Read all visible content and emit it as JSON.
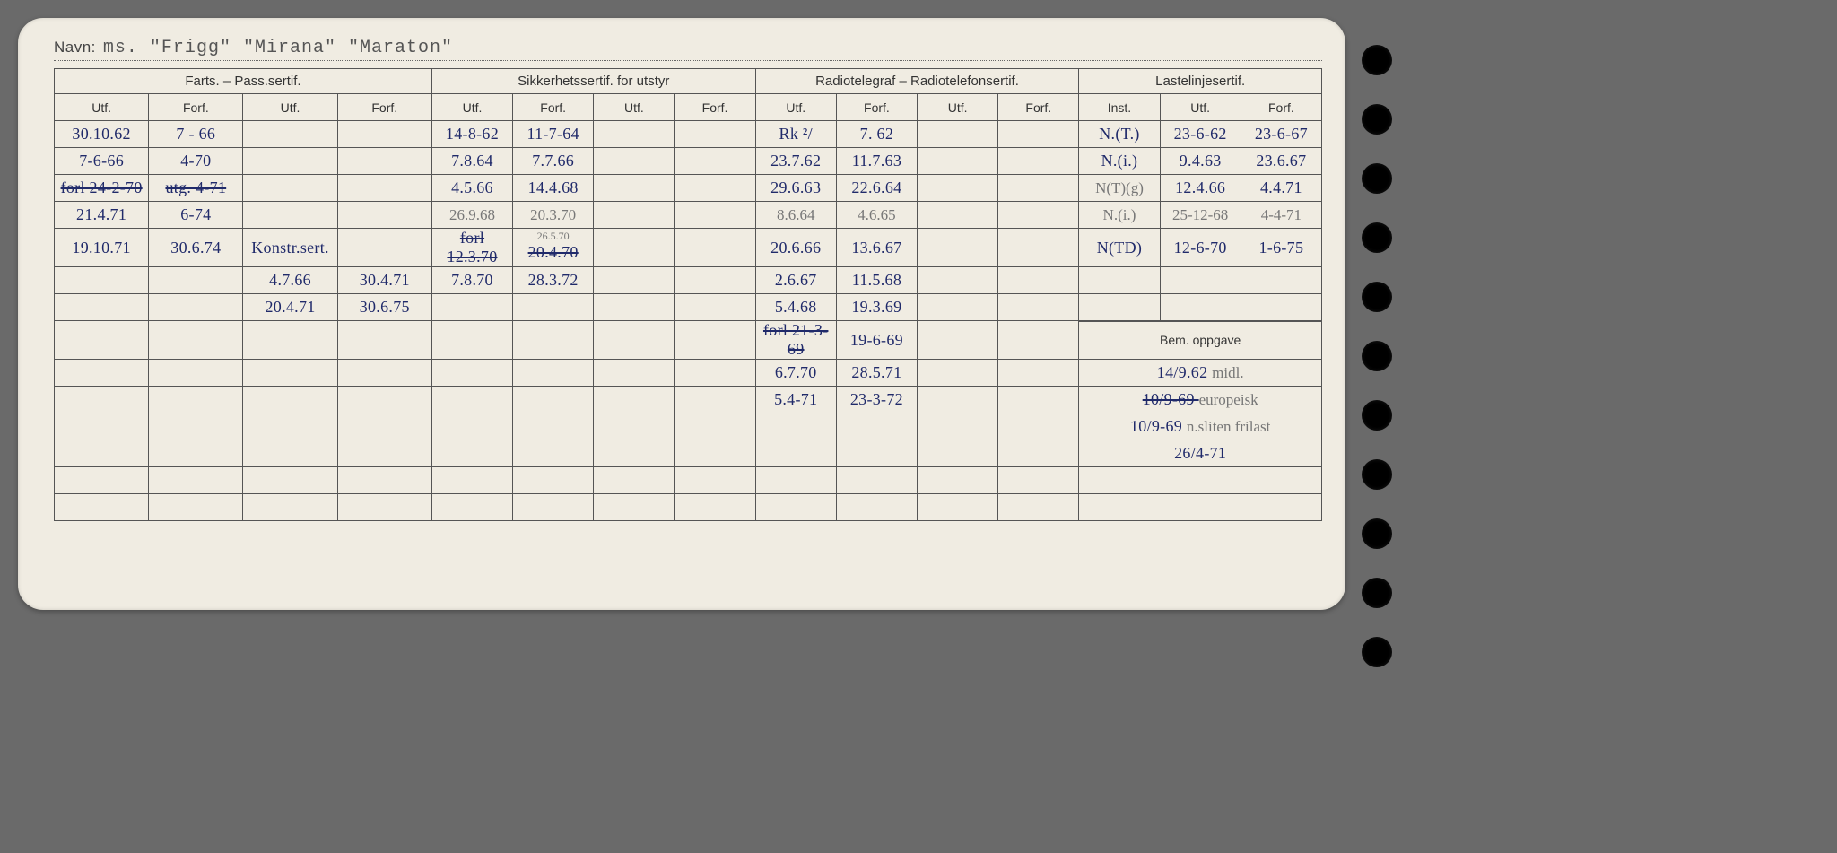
{
  "navn_label": "Navn:",
  "navn_value": "ms. \"Frigg\" \"Mirana\" \"Maraton\"",
  "headers": {
    "group1": "Farts. – Pass.sertif.",
    "group2": "Sikkerhetssertif. for utstyr",
    "group3": "Radiotelegraf – Radiotelefonsertif.",
    "group4": "Lastelinjesertif.",
    "utf": "Utf.",
    "forf": "Forf.",
    "inst": "Inst.",
    "bem": "Bem. oppgave"
  },
  "colors": {
    "card_bg": "#f0ece2",
    "page_bg": "#6a6a6a",
    "ink_blue": "#202a6a",
    "ink_grey": "#777",
    "line": "#555"
  },
  "rows": [
    {
      "f1u": "30.10.62",
      "f1f": "7 - 66",
      "f2u": "",
      "f2f": "",
      "s1u": "14-8-62",
      "s1f": "11-7-64",
      "s2u": "",
      "s2f": "",
      "r1u": "Rk ²/",
      "r1f": "7. 62",
      "r2u": "",
      "r2f": "",
      "li": "N.(T.)",
      "lu": "23-6-62",
      "lf": "23-6-67"
    },
    {
      "f1u": "7-6-66",
      "f1f": "4-70",
      "f2u": "",
      "f2f": "",
      "s1u": "7.8.64",
      "s1f": "7.7.66",
      "s2u": "",
      "s2f": "",
      "r1u": "23.7.62",
      "r1f": "11.7.63",
      "r2u": "",
      "r2f": "",
      "li": "N.(i.)",
      "lu": "9.4.63",
      "lf": "23.6.67"
    },
    {
      "f1u": "forl 24-2-70",
      "f1f": "utg. 4-71",
      "f1_strike": true,
      "f2u": "",
      "f2f": "",
      "s1u": "4.5.66",
      "s1f": "14.4.68",
      "s2u": "",
      "s2f": "",
      "r1u": "29.6.63",
      "r1f": "22.6.64",
      "r2u": "",
      "r2f": "",
      "li": "N(T)(g)",
      "lu": "12.4.66",
      "lf": "4.4.71",
      "li_grey": true
    },
    {
      "f1u": "21.4.71",
      "f1f": "6-74",
      "f2u": "",
      "f2f": "",
      "s1u": "26.9.68",
      "s1f": "20.3.70",
      "s_grey": true,
      "s2u": "",
      "s2f": "",
      "r1u": "8.6.64",
      "r1f": "4.6.65",
      "r_grey": true,
      "r2u": "",
      "r2f": "",
      "li": "N.(i.)",
      "lu": "25-12-68",
      "lf": "4-4-71",
      "l_grey": true
    },
    {
      "f1u": "19.10.71",
      "f1f": "30.6.74",
      "f2u": "Konstr.sert.",
      "f2f": "",
      "s1u": "forl 12.3.70",
      "s1f": "20.4.70",
      "s1f_top": "26.5.70",
      "s1_strike": true,
      "s2u": "",
      "s2f": "",
      "r1u": "20.6.66",
      "r1f": "13.6.67",
      "r2u": "",
      "r2f": "",
      "li": "N(TD)",
      "lu": "12-6-70",
      "lf": "1-6-75"
    },
    {
      "f1u": "",
      "f1f": "",
      "f2u": "4.7.66",
      "f2f": "30.4.71",
      "s1u": "7.8.70",
      "s1f": "28.3.72",
      "s2u": "",
      "s2f": "",
      "r1u": "2.6.67",
      "r1f": "11.5.68",
      "r2u": "",
      "r2f": "",
      "li": "",
      "lu": "",
      "lf": ""
    },
    {
      "f1u": "",
      "f1f": "",
      "f2u": "20.4.71",
      "f2f": "30.6.75",
      "s1u": "",
      "s1f": "",
      "s2u": "",
      "s2f": "",
      "r1u": "5.4.68",
      "r1f": "19.3.69",
      "r2u": "",
      "r2f": "",
      "li": "",
      "lu": "",
      "lf": ""
    },
    {
      "f1u": "",
      "f1f": "",
      "f2u": "",
      "f2f": "",
      "s1u": "",
      "s1f": "",
      "s2u": "",
      "s2f": "",
      "r1u": "forl 21-3-69",
      "r1f": "19-6-69",
      "r1_strike": true,
      "r2u": "",
      "r2f": ""
    },
    {
      "f1u": "",
      "f1f": "",
      "f2u": "",
      "f2f": "",
      "s1u": "",
      "s1f": "",
      "s2u": "",
      "s2f": "",
      "r1u": "6.7.70",
      "r1f": "28.5.71",
      "r2u": "",
      "r2f": ""
    },
    {
      "f1u": "",
      "f1f": "",
      "f2u": "",
      "f2f": "",
      "s1u": "",
      "s1f": "",
      "s2u": "",
      "s2f": "",
      "r1u": "5.4-71",
      "r1f": "23-3-72",
      "r2u": "",
      "r2f": ""
    },
    {
      "f1u": "",
      "f1f": "",
      "f2u": "",
      "f2f": "",
      "s1u": "",
      "s1f": "",
      "s2u": "",
      "s2f": "",
      "r1u": "",
      "r1f": "",
      "r2u": "",
      "r2f": ""
    },
    {
      "f1u": "",
      "f1f": "",
      "f2u": "",
      "f2f": "",
      "s1u": "",
      "s1f": "",
      "s2u": "",
      "s2f": "",
      "r1u": "",
      "r1f": "",
      "r2u": "",
      "r2f": ""
    },
    {
      "f1u": "",
      "f1f": "",
      "f2u": "",
      "f2f": "",
      "s1u": "",
      "s1f": "",
      "s2u": "",
      "s2f": "",
      "r1u": "",
      "r1f": "",
      "r2u": "",
      "r2f": ""
    },
    {
      "f1u": "",
      "f1f": "",
      "f2u": "",
      "f2f": "",
      "s1u": "",
      "s1f": "",
      "s2u": "",
      "s2f": "",
      "r1u": "",
      "r1f": "",
      "r2u": "",
      "r2f": ""
    }
  ],
  "bem_entries": [
    {
      "date": "14/9.62",
      "note": "midl."
    },
    {
      "date": "10/9-69",
      "note": "europeisk",
      "strike": true
    },
    {
      "date": "10/9-69",
      "note": "n.sliten frilast"
    },
    {
      "date": "26/4-71",
      "note": ""
    }
  ],
  "holes_count": 11
}
